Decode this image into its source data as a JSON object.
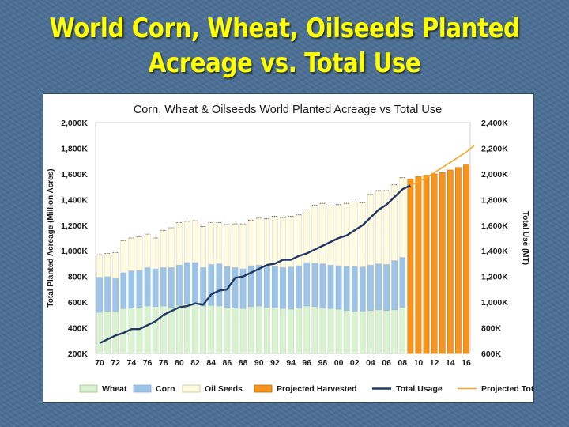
{
  "slide": {
    "title_line1": "World Corn, Wheat, Oilseeds Planted",
    "title_line2": "Acreage vs. Total Use"
  },
  "chart_data": {
    "type": "bar",
    "title": "Corn, Wheat & Oilseeds World Planted Acreage vs Total Use",
    "ylabel": "Total Planted Acreage (Million Acres)",
    "y2label": "Total Use (MT)",
    "ylim": [
      200,
      2000
    ],
    "y2lim": [
      600,
      2400
    ],
    "yticks": [
      "200K",
      "400K",
      "600K",
      "800K",
      "1,000K",
      "1,200K",
      "1,400K",
      "1,600K",
      "1,800K",
      "2,000K"
    ],
    "y2ticks": [
      "600K",
      "800K",
      "1,000K",
      "1,200K",
      "1,400K",
      "1,600K",
      "1,800K",
      "2,000K",
      "2,200K",
      "2,400K"
    ],
    "xticks": [
      "70",
      "72",
      "74",
      "76",
      "78",
      "80",
      "82",
      "84",
      "86",
      "88",
      "90",
      "92",
      "94",
      "96",
      "98",
      "00",
      "02",
      "04",
      "06",
      "08",
      "10",
      "12",
      "14",
      "16"
    ],
    "years": [
      1970,
      1971,
      1972,
      1973,
      1974,
      1975,
      1976,
      1977,
      1978,
      1979,
      1980,
      1981,
      1982,
      1983,
      1984,
      1985,
      1986,
      1987,
      1988,
      1989,
      1990,
      1991,
      1992,
      1993,
      1994,
      1995,
      1996,
      1997,
      1998,
      1999,
      2000,
      2001,
      2002,
      2003,
      2004,
      2005,
      2006,
      2007,
      2008,
      2009,
      2010,
      2011,
      2012,
      2013,
      2014,
      2015,
      2016
    ],
    "series": [
      {
        "name": "Wheat",
        "color": "#d9f2d0",
        "values": [
          520,
          530,
          525,
          550,
          555,
          560,
          570,
          565,
          570,
          560,
          575,
          590,
          585,
          570,
          575,
          570,
          560,
          555,
          550,
          565,
          570,
          560,
          555,
          550,
          545,
          555,
          570,
          565,
          555,
          550,
          545,
          535,
          530,
          530,
          535,
          540,
          535,
          540,
          560
        ]
      },
      {
        "name": "Corn",
        "color": "#9dc3e6",
        "values": [
          275,
          270,
          260,
          280,
          290,
          290,
          300,
          295,
          300,
          310,
          315,
          320,
          325,
          300,
          320,
          330,
          320,
          315,
          310,
          320,
          320,
          320,
          325,
          320,
          330,
          330,
          340,
          340,
          345,
          340,
          340,
          345,
          350,
          345,
          355,
          360,
          360,
          385,
          390
        ]
      },
      {
        "name": "Oil Seeds",
        "color": "#fffbe0",
        "values": [
          175,
          180,
          200,
          250,
          255,
          260,
          260,
          240,
          290,
          310,
          330,
          320,
          325,
          320,
          325,
          320,
          325,
          340,
          350,
          355,
          365,
          370,
          390,
          390,
          395,
          395,
          410,
          450,
          470,
          460,
          475,
          490,
          500,
          500,
          550,
          570,
          575,
          590,
          620
        ]
      },
      {
        "name": "Projected Harvested",
        "color": "#f7941d",
        "values": [
          1560,
          1580,
          1590,
          1600,
          1610,
          1630,
          1650,
          1670
        ]
      },
      {
        "name": "Total Usage",
        "color": "#1f3864",
        "values": [
          680,
          710,
          740,
          760,
          790,
          790,
          820,
          850,
          900,
          930,
          960,
          970,
          990,
          980,
          1060,
          1090,
          1100,
          1190,
          1200,
          1230,
          1260,
          1290,
          1300,
          1330,
          1330,
          1360,
          1380,
          1410,
          1440,
          1470,
          1500,
          1520,
          1560,
          1600,
          1660,
          1720,
          1760,
          1820,
          1880,
          1910
        ]
      },
      {
        "name": "Projected Total Use",
        "color": "#f5a623",
        "values": [
          1940,
          1970,
          2010,
          2050,
          2090,
          2130,
          2170,
          2220
        ]
      }
    ],
    "legend": [
      "Wheat",
      "Corn",
      "Oil Seeds",
      "Projected Harvested",
      "Total Usage",
      "Projected Total Use"
    ]
  }
}
